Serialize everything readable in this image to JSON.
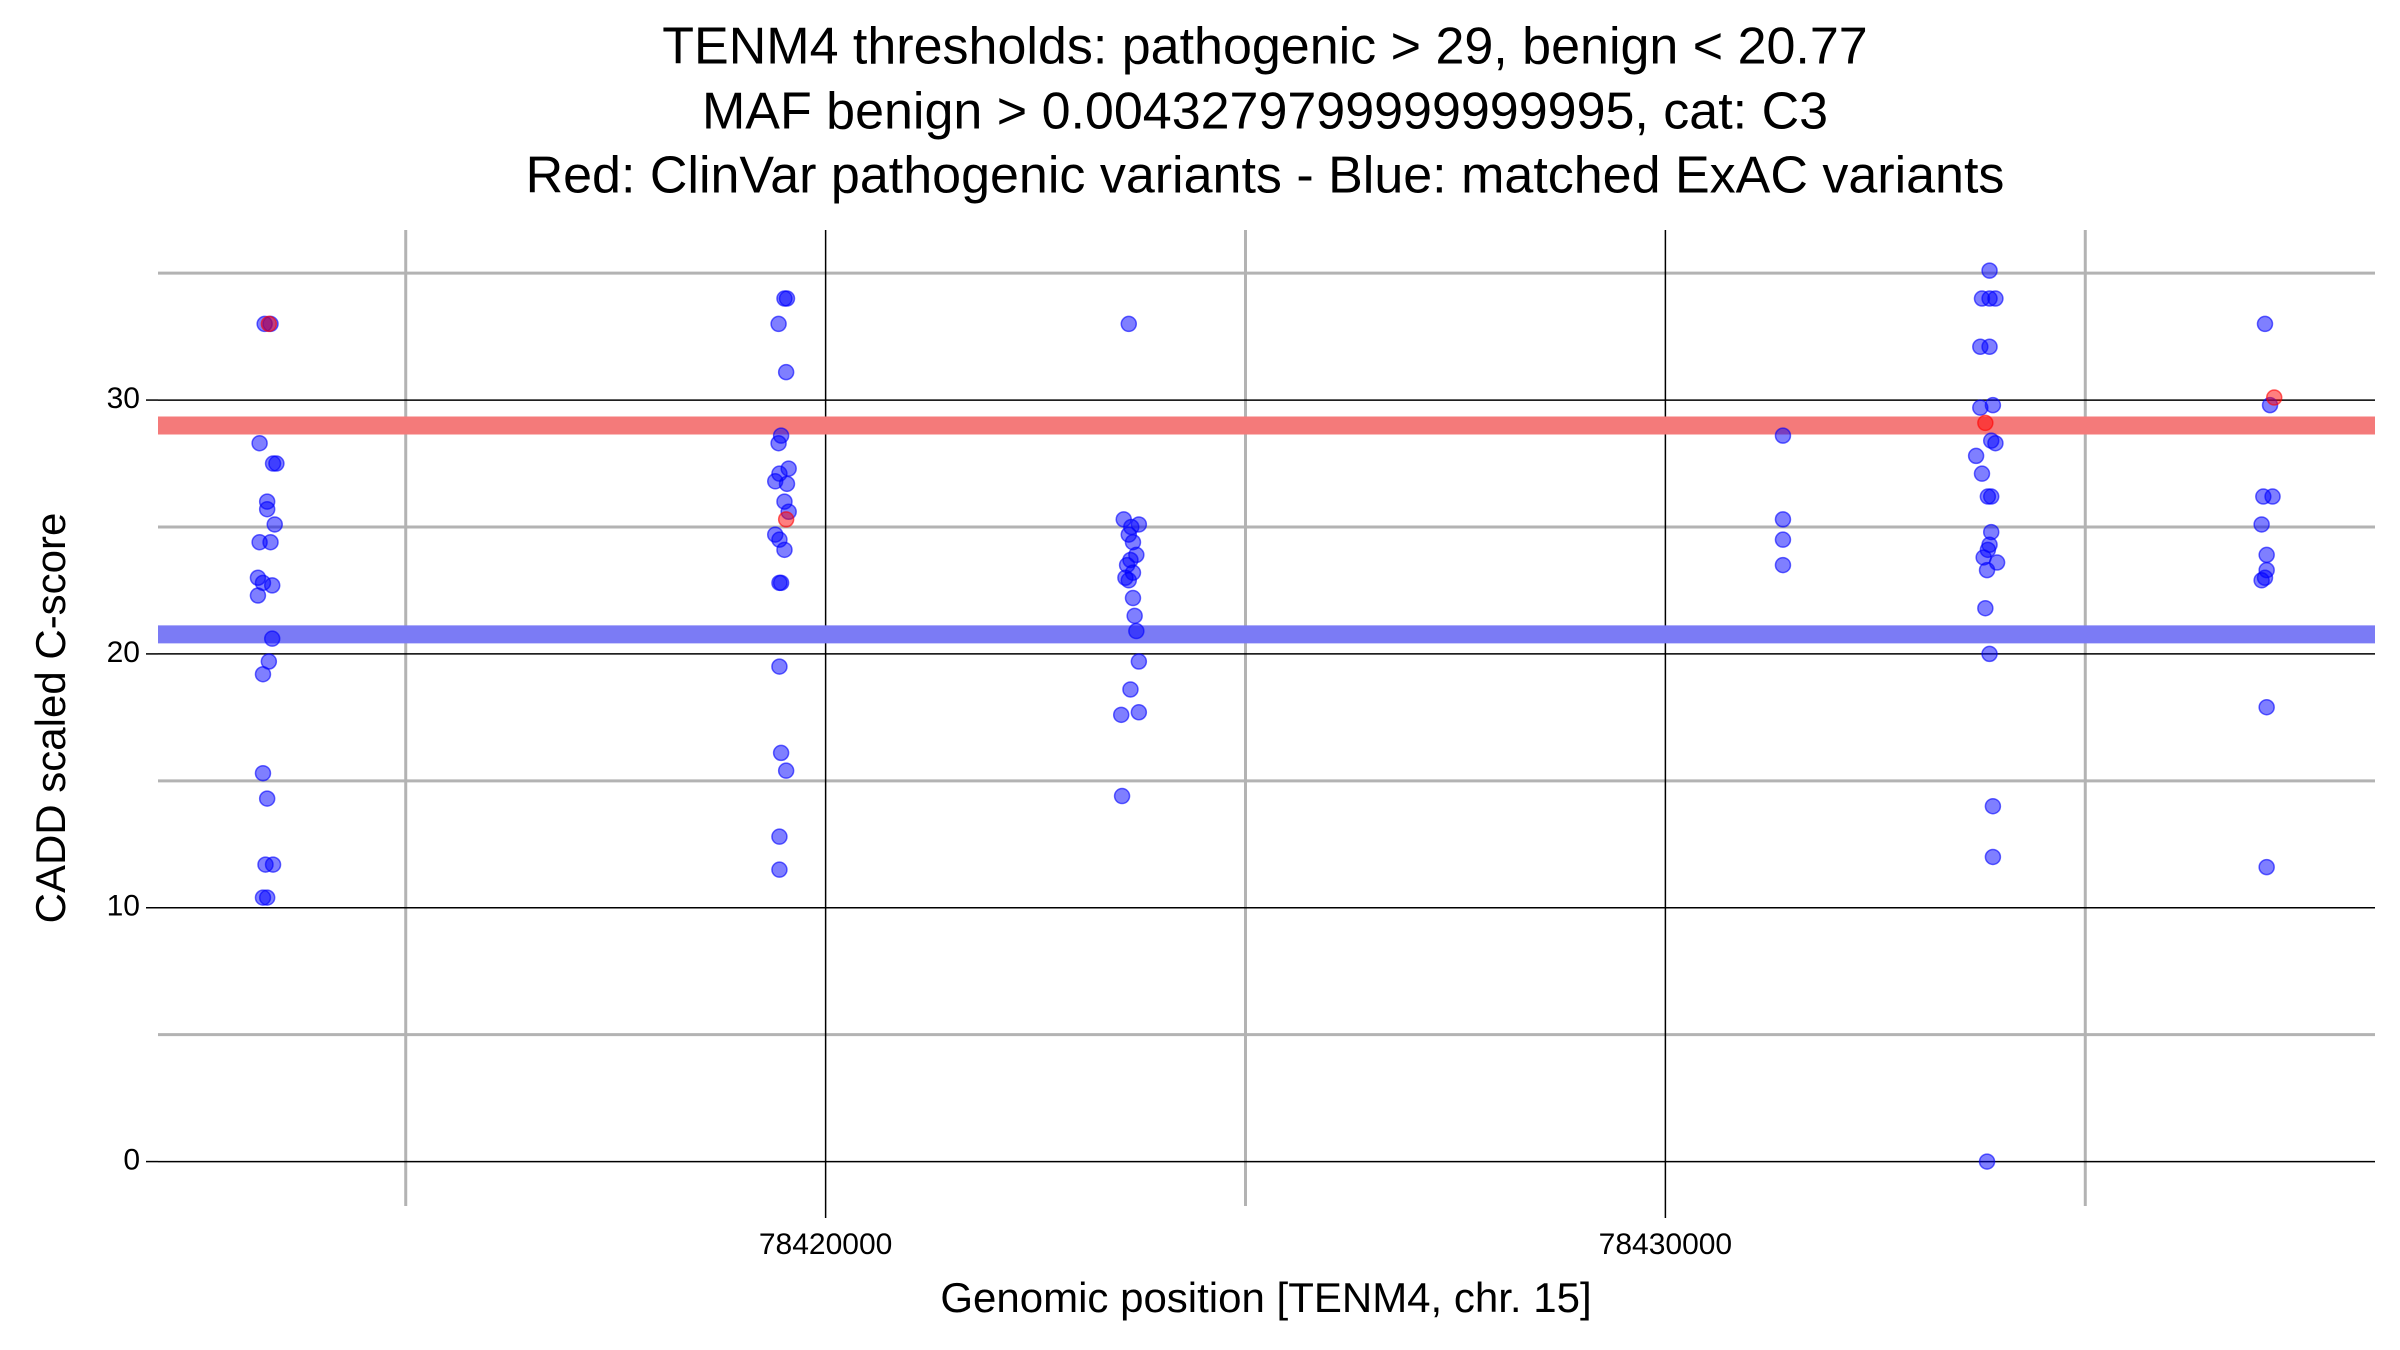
{
  "chart_data": {
    "type": "scatter",
    "title": [
      "TENM4 thresholds: pathogenic > 29, benign < 20.77",
      "MAF benign > 0.0043279799999999995, cat: C3",
      "Red: ClinVar pathogenic variants - Blue: matched ExAC variants"
    ],
    "x_label": "Genomic position [TENM4, chr. 15]",
    "y_label": "CADD scaled C-score",
    "xlim": [
      78412050,
      78438450
    ],
    "ylim": [
      -1.75,
      36.7
    ],
    "xticks": [
      78420000,
      78430000
    ],
    "yticks": [
      0,
      10,
      20,
      30
    ],
    "xminor": [
      78415000,
      78425000,
      78435000
    ],
    "yminor": [
      5,
      15,
      25,
      35
    ],
    "grid": true,
    "thresholds": [
      {
        "value": 29,
        "color": "#f47a7a"
      },
      {
        "value": 20.77,
        "color": "#7b7bf5"
      }
    ],
    "series": [
      {
        "color": "#0000ff",
        "x": [
          78413320,
          78413390,
          78413260,
          78413420,
          78413460,
          78413350,
          78413350,
          78413440,
          78413260,
          78413390,
          78413240,
          78413300,
          78413410,
          78413240,
          78413410,
          78413370,
          78413300,
          78413300,
          78413350,
          78413330,
          78413420,
          78413300,
          78413350,
          78419510,
          78419540,
          78419440,
          78419530,
          78419470,
          78419440,
          78419560,
          78419450,
          78419400,
          78419540,
          78419510,
          78419560,
          78419400,
          78419450,
          78419510,
          78419450,
          78419470,
          78419450,
          78419470,
          78419530,
          78419450,
          78419450,
          78423610,
          78423550,
          78423730,
          78423640,
          78423610,
          78423660,
          78423700,
          78423630,
          78423590,
          78423660,
          78423570,
          78423610,
          78423660,
          78423680,
          78423700,
          78423730,
          78423630,
          78423730,
          78423520,
          78423530,
          78431400,
          78431400,
          78431400,
          78431400,
          78433860,
          78433770,
          78433860,
          78433930,
          78433750,
          78433860,
          78433900,
          78433750,
          78433880,
          78433930,
          78433700,
          78433770,
          78433840,
          78433880,
          78433880,
          78433860,
          78433840,
          78433790,
          78433950,
          78433830,
          78433810,
          78433860,
          78433900,
          78433900,
          78433830,
          78437140,
          78437200,
          78437120,
          78437230,
          78437100,
          78437160,
          78437160,
          78437140,
          78437100,
          78437160,
          78437160
        ],
        "values": [
          33,
          33,
          28.3,
          27.5,
          27.5,
          26.0,
          25.7,
          25.1,
          24.4,
          24.4,
          23.0,
          22.8,
          22.7,
          22.3,
          20.6,
          19.7,
          19.2,
          15.3,
          14.3,
          11.7,
          11.7,
          10.4,
          10.4,
          34,
          34,
          33,
          31.1,
          28.6,
          28.3,
          27.3,
          27.1,
          26.8,
          26.7,
          26.0,
          25.6,
          24.7,
          24.5,
          24.1,
          22.8,
          22.8,
          19.5,
          16.1,
          15.4,
          12.8,
          11.5,
          33,
          25.3,
          25.1,
          25.0,
          24.7,
          24.4,
          23.9,
          23.7,
          23.5,
          23.2,
          23.0,
          22.9,
          22.2,
          21.5,
          20.9,
          19.7,
          18.6,
          17.7,
          17.6,
          14.4,
          28.6,
          25.3,
          24.5,
          23.5,
          35.1,
          34,
          34,
          34,
          32.1,
          32.1,
          29.8,
          29.7,
          28.4,
          28.3,
          27.8,
          27.1,
          26.2,
          26.2,
          24.8,
          24.3,
          24.1,
          23.8,
          23.6,
          23.3,
          21.8,
          20.0,
          14.0,
          12.0,
          0,
          33,
          29.8,
          26.2,
          26.2,
          25.1,
          23.9,
          23.3,
          23.0,
          22.9,
          17.9,
          11.6
        ]
      },
      {
        "color": "#ff0000",
        "x": [
          78413370,
          78419530,
          78433810,
          78437250
        ],
        "values": [
          33,
          25.3,
          29.1,
          30.1
        ]
      }
    ]
  }
}
